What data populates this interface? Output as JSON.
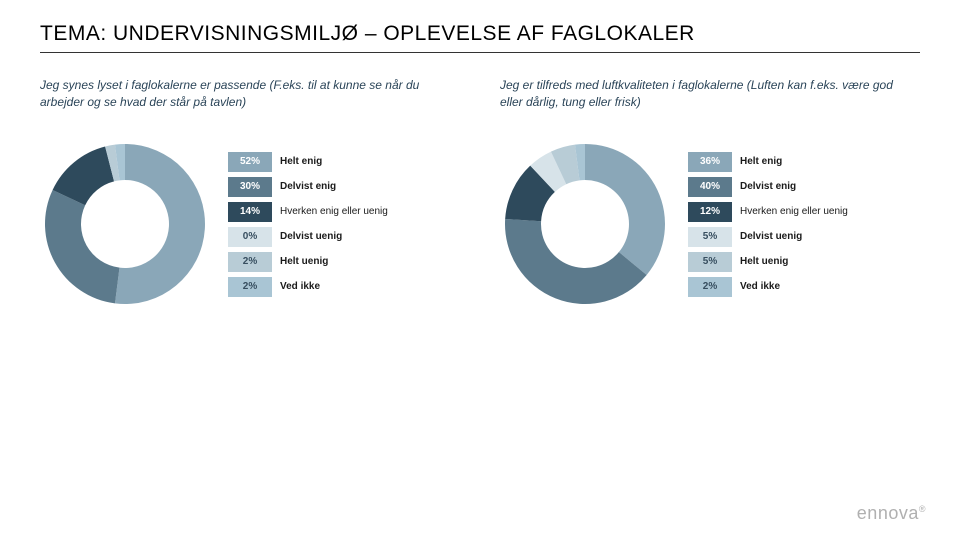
{
  "page": {
    "title": "TEMA: UNDERVISNINGSMILJØ – OPLEVELSE AF FAGLOKALER",
    "logo": "ennova"
  },
  "charts": [
    {
      "subtitle": "Jeg synes lyset i faglokalerne er passende (F.eks. til at kunne se når du arbejder og se hvad der står på tavlen)",
      "type": "donut",
      "inner_radius_ratio": 0.55,
      "background": "#ffffff",
      "segments": [
        {
          "label": "Helt enig",
          "value": 52,
          "color": "#8aa7b8",
          "text_light": false,
          "bold": true
        },
        {
          "label": "Delvist enig",
          "value": 30,
          "color": "#5c7a8c",
          "text_light": false,
          "bold": true
        },
        {
          "label": "Hverken enig eller uenig",
          "value": 14,
          "color": "#2e4a5c",
          "text_light": false,
          "bold": false
        },
        {
          "label": "Delvist uenig",
          "value": 0,
          "color": "#d7e3e9",
          "text_light": true,
          "bold": true
        },
        {
          "label": "Helt uenig",
          "value": 2,
          "color": "#b8ccd6",
          "text_light": true,
          "bold": true
        },
        {
          "label": "Ved ikke",
          "value": 2,
          "color": "#a9c5d4",
          "text_light": true,
          "bold": true
        }
      ]
    },
    {
      "subtitle": "Jeg er tilfreds med luftkvaliteten i faglokalerne (Luften kan f.eks. være god eller dårlig, tung eller frisk)",
      "type": "donut",
      "inner_radius_ratio": 0.55,
      "background": "#ffffff",
      "segments": [
        {
          "label": "Helt enig",
          "value": 36,
          "color": "#8aa7b8",
          "text_light": false,
          "bold": true
        },
        {
          "label": "Delvist enig",
          "value": 40,
          "color": "#5c7a8c",
          "text_light": false,
          "bold": true
        },
        {
          "label": "Hverken enig eller uenig",
          "value": 12,
          "color": "#2e4a5c",
          "text_light": false,
          "bold": false
        },
        {
          "label": "Delvist uenig",
          "value": 5,
          "color": "#d7e3e9",
          "text_light": true,
          "bold": true
        },
        {
          "label": "Helt uenig",
          "value": 5,
          "color": "#b8ccd6",
          "text_light": true,
          "bold": true
        },
        {
          "label": "Ved ikke",
          "value": 2,
          "color": "#a9c5d4",
          "text_light": true,
          "bold": true
        }
      ]
    }
  ]
}
